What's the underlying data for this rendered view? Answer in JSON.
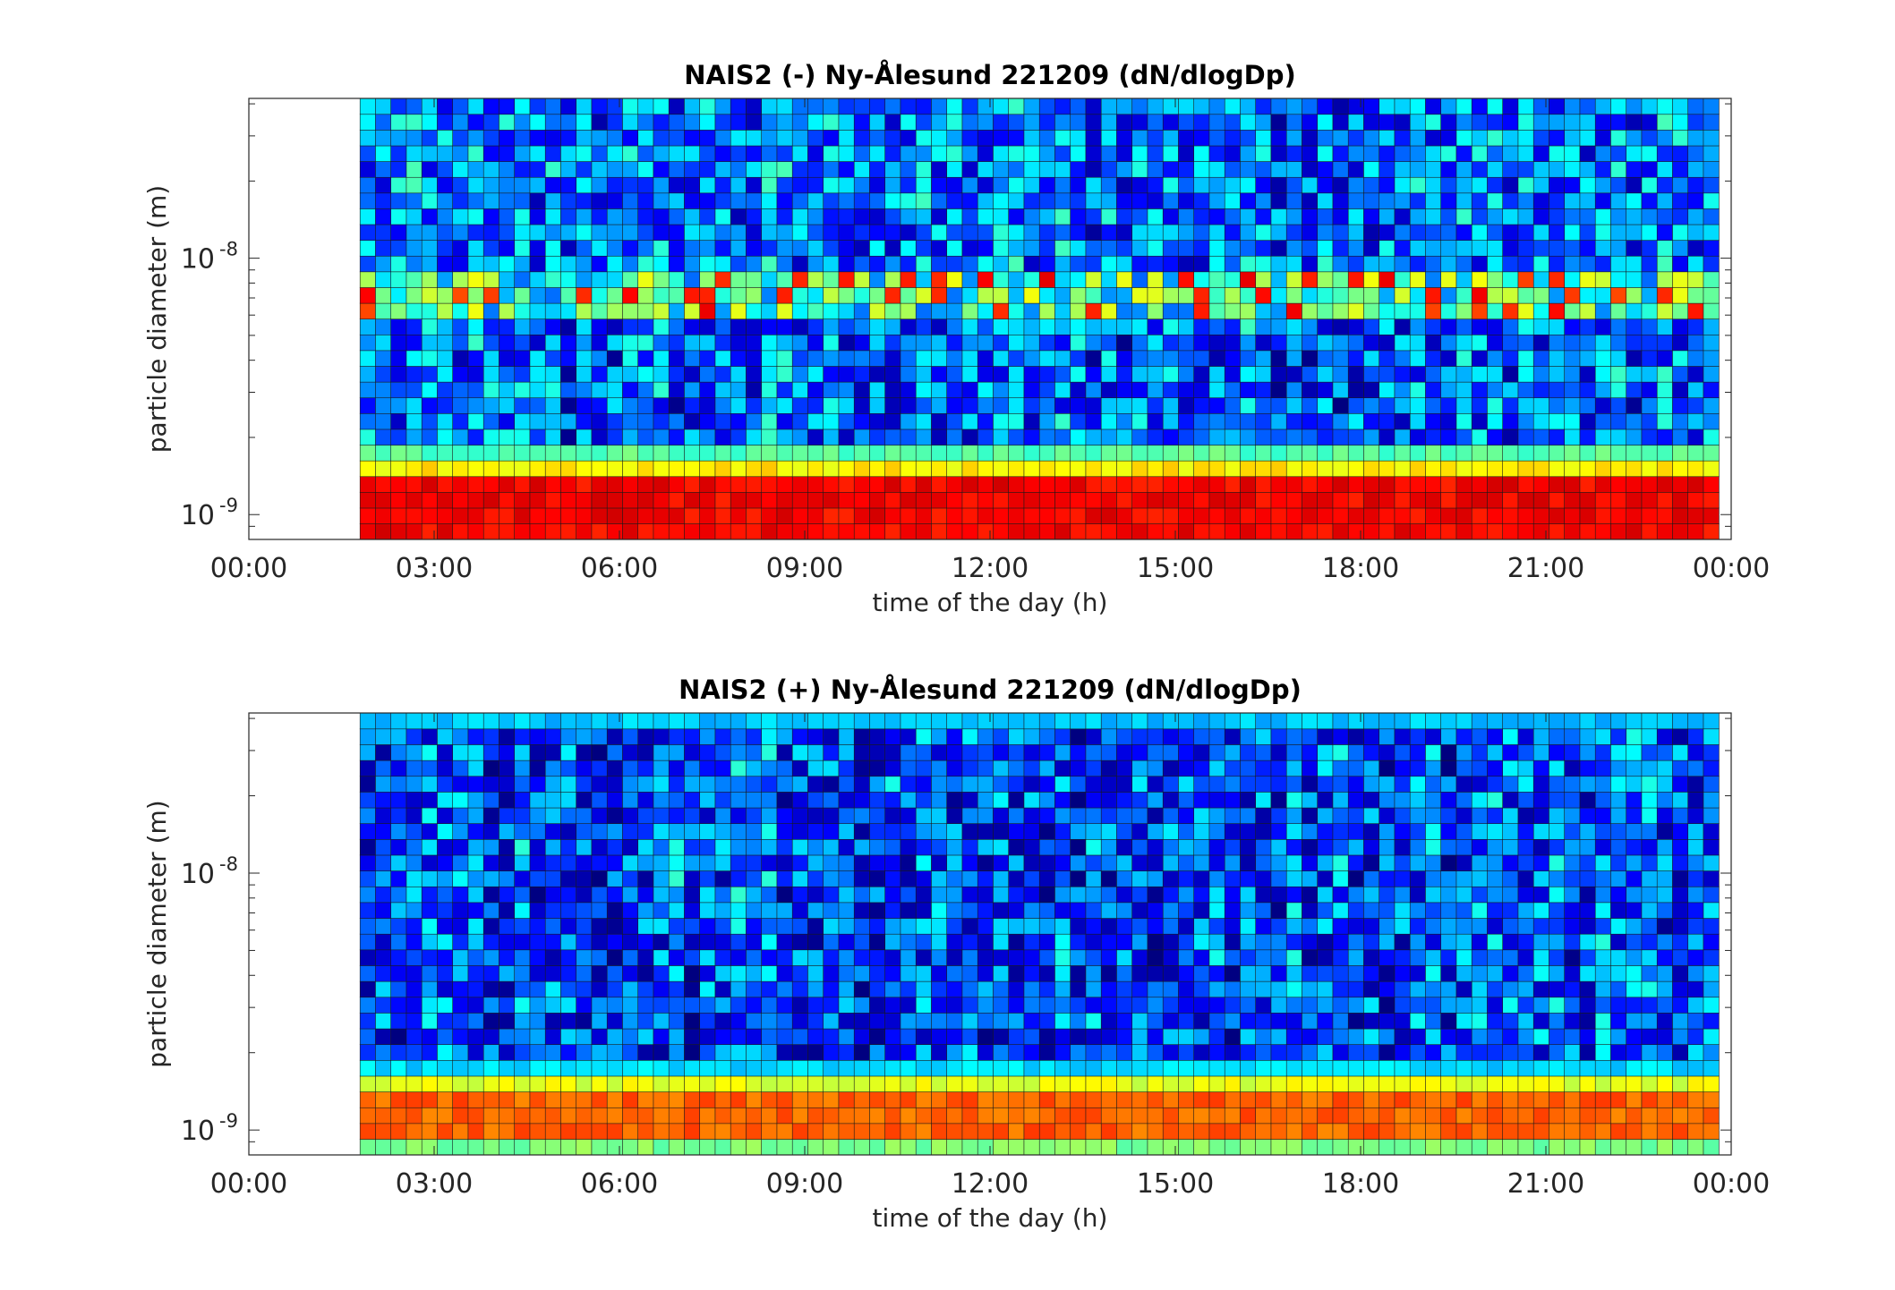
{
  "chart_data": [
    {
      "type": "heatmap",
      "title": "NAIS2 (-) Ny-Ålesund 221209 (dN/dlogDp)",
      "xlabel": "time of the day (h)",
      "ylabel": "particle diameter (m)",
      "xlim_hours": [
        0,
        24
      ],
      "ylim_m": [
        8e-10,
        4.2e-08
      ],
      "y_scale": "log",
      "data_start_hour": 1.8,
      "data_end_hour": 23.9,
      "time_step_minutes": 15,
      "xticks": [
        "00:00",
        "03:00",
        "06:00",
        "09:00",
        "12:00",
        "15:00",
        "18:00",
        "21:00",
        "00:00"
      ],
      "xtick_hours": [
        0,
        3,
        6,
        9,
        12,
        15,
        18,
        21,
        24
      ],
      "yticks": [
        {
          "value": 1e-09,
          "label": "10",
          "exponent": "-9"
        },
        {
          "value": 1e-08,
          "label": "10",
          "exponent": "-8"
        }
      ],
      "colormap": "jet",
      "color_scale": "log",
      "band_levels": [
        {
          "from_m": 8e-10,
          "to_m": 1.35e-09,
          "level": 0.88
        },
        {
          "from_m": 1.35e-09,
          "to_m": 1.6e-09,
          "level": 0.64
        },
        {
          "from_m": 1.6e-09,
          "to_m": 1.9e-09,
          "level": 0.46
        },
        {
          "from_m": 1.9e-09,
          "to_m": 5.5e-09,
          "level": 0.22
        },
        {
          "from_m": 5.5e-09,
          "to_m": 8.5e-09,
          "level": 0.42,
          "peak_level": 0.9
        },
        {
          "from_m": 8.5e-09,
          "to_m": 4.2e-08,
          "level": 0.24
        }
      ]
    },
    {
      "type": "heatmap",
      "title": "NAIS2 (+) Ny-Ålesund 221209 (dN/dlogDp)",
      "xlabel": "time of the day (h)",
      "ylabel": "particle diameter (m)",
      "xlim_hours": [
        0,
        24
      ],
      "ylim_m": [
        8e-10,
        4.2e-08
      ],
      "y_scale": "log",
      "data_start_hour": 1.8,
      "data_end_hour": 23.9,
      "time_step_minutes": 15,
      "xticks": [
        "00:00",
        "03:00",
        "06:00",
        "09:00",
        "12:00",
        "15:00",
        "18:00",
        "21:00",
        "00:00"
      ],
      "xtick_hours": [
        0,
        3,
        6,
        9,
        12,
        15,
        18,
        21,
        24
      ],
      "yticks": [
        {
          "value": 1e-09,
          "label": "10",
          "exponent": "-9"
        },
        {
          "value": 1e-08,
          "label": "10",
          "exponent": "-8"
        }
      ],
      "colormap": "jet",
      "color_scale": "log",
      "band_levels": [
        {
          "from_m": 8e-10,
          "to_m": 9.2e-10,
          "level": 0.5
        },
        {
          "from_m": 9.2e-10,
          "to_m": 1.45e-09,
          "level": 0.78
        },
        {
          "from_m": 1.45e-09,
          "to_m": 1.65e-09,
          "level": 0.6
        },
        {
          "from_m": 1.65e-09,
          "to_m": 1.9e-09,
          "level": 0.34
        },
        {
          "from_m": 1.9e-09,
          "to_m": 3.5e-08,
          "level": 0.2
        },
        {
          "from_m": 3.5e-08,
          "to_m": 4.2e-08,
          "level": 0.32
        }
      ]
    }
  ]
}
